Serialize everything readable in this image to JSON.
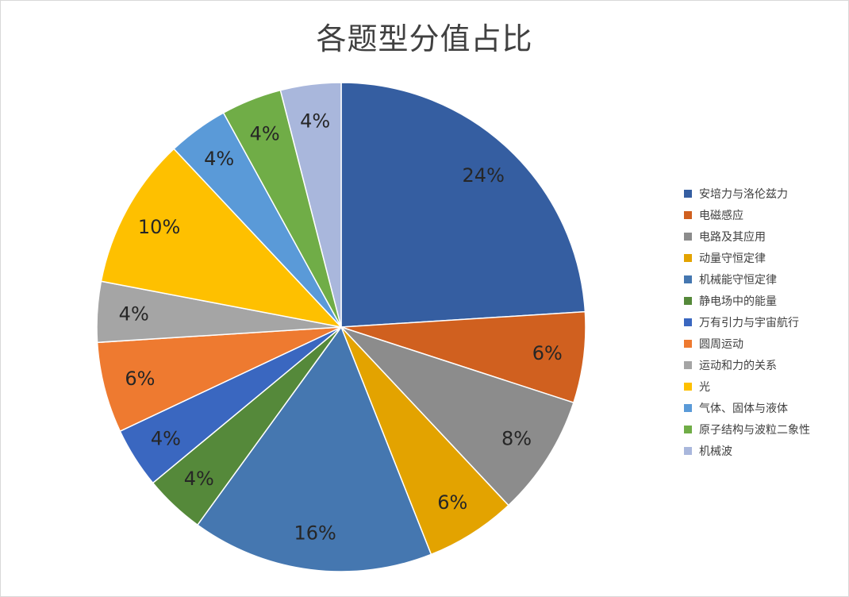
{
  "chart_data": {
    "type": "pie",
    "title": "各题型分值占比",
    "categories": [
      "安培力与洛伦兹力",
      "电磁感应",
      "电路及其应用",
      "动量守恒定律",
      "机械能守恒定律",
      "静电场中的能量",
      "万有引力与宇宙航行",
      "圆周运动",
      "运动和力的关系",
      "光",
      "气体、固体与液体",
      "原子结构与波粒二象性",
      "机械波"
    ],
    "values": [
      24,
      6,
      8,
      6,
      16,
      4,
      4,
      6,
      4,
      10,
      4,
      4,
      4
    ],
    "labels": [
      "24%",
      "6%",
      "8%",
      "6%",
      "16%",
      "4%",
      "4%",
      "6%",
      "4%",
      "10%",
      "4%",
      "4%",
      "4%"
    ],
    "colors": [
      "#355ea1",
      "#d0601f",
      "#8c8c8c",
      "#e3a300",
      "#4577b0",
      "#55893a",
      "#3a67c0",
      "#ee7a30",
      "#a5a5a5",
      "#fec000",
      "#5a9ad8",
      "#70ad47",
      "#a9b7dc"
    ],
    "legend_position": "right"
  }
}
